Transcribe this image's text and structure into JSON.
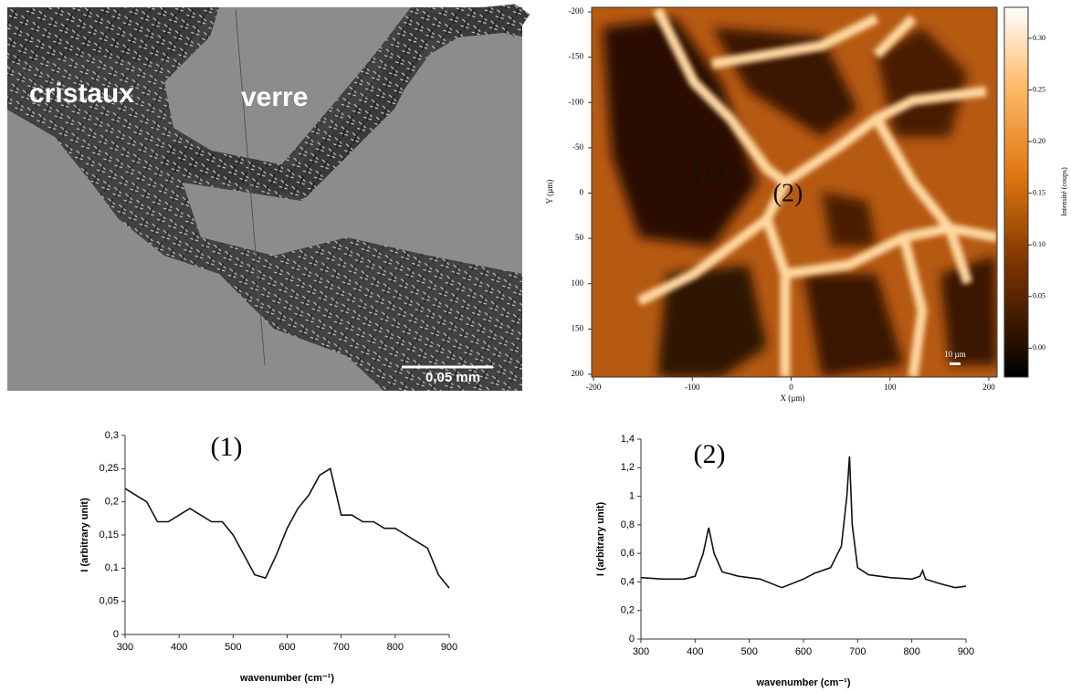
{
  "micrograph": {
    "labels": [
      "cristaux",
      "verre"
    ],
    "scale_bar": "0,05 mm"
  },
  "chart_data": [
    {
      "type": "heatmap",
      "annotations": [
        "(1)",
        "(2)"
      ],
      "scale_bar": "10 µm",
      "xlabel": "X (µm)",
      "ylabel": "Y (µm)",
      "colorbar_label": "Intensité (coups)",
      "xlim": [
        -200,
        200
      ],
      "xticks": [
        -200,
        -100,
        0,
        100,
        200
      ],
      "ylim": [
        200,
        -200
      ],
      "yticks": [
        -200,
        -150,
        -100,
        -50,
        0,
        50,
        100,
        150,
        200
      ],
      "clim": [
        -0.028,
        0.33
      ],
      "cticks": [
        {
          "value": 0,
          "label": "0.00"
        },
        {
          "value": 0.05,
          "label": "0.05"
        },
        {
          "value": 0.1,
          "label": "0.10"
        },
        {
          "value": 0.15,
          "label": "0.15"
        },
        {
          "value": 0.2,
          "label": "0.20"
        },
        {
          "value": 0.25,
          "label": "0.25"
        },
        {
          "value": 0.3,
          "label": "0.30"
        }
      ]
    },
    {
      "type": "line",
      "annotation": "(1)",
      "xlabel": "wavenumber (cm⁻¹)",
      "ylabel": "I (arbitrary unit)",
      "color": "#111111",
      "x": [
        300,
        320,
        340,
        360,
        380,
        400,
        420,
        440,
        460,
        480,
        500,
        520,
        540,
        560,
        580,
        600,
        620,
        640,
        660,
        680,
        700,
        720,
        740,
        760,
        780,
        800,
        820,
        840,
        860,
        880,
        900
      ],
      "values": [
        0.22,
        0.21,
        0.2,
        0.17,
        0.17,
        0.18,
        0.19,
        0.18,
        0.17,
        0.17,
        0.15,
        0.12,
        0.09,
        0.085,
        0.12,
        0.16,
        0.19,
        0.21,
        0.24,
        0.25,
        0.18,
        0.18,
        0.17,
        0.17,
        0.16,
        0.16,
        0.15,
        0.14,
        0.13,
        0.09,
        0.07
      ],
      "xlim": [
        300,
        900
      ],
      "xticks": [
        300,
        400,
        500,
        600,
        700,
        800,
        900
      ],
      "ylim": [
        0,
        0.3
      ],
      "yticks": [
        0,
        {
          "value": 0.05,
          "label": "0,05"
        },
        {
          "value": 0.1,
          "label": "0,1"
        },
        {
          "value": 0.15,
          "label": "0,15"
        },
        {
          "value": 0.2,
          "label": "0,2"
        },
        {
          "value": 0.25,
          "label": "0,25"
        },
        {
          "value": 0.3,
          "label": "0,3"
        }
      ]
    },
    {
      "type": "line",
      "annotation": "(2)",
      "xlabel": "wavenumber (cm⁻¹)",
      "ylabel": "I (arbitrary unit)",
      "color": "#111111",
      "x": [
        300,
        340,
        380,
        400,
        415,
        425,
        435,
        450,
        480,
        520,
        560,
        600,
        620,
        650,
        670,
        680,
        685,
        690,
        700,
        720,
        760,
        800,
        815,
        820,
        825,
        850,
        880,
        900
      ],
      "values": [
        0.43,
        0.42,
        0.42,
        0.44,
        0.6,
        0.78,
        0.6,
        0.47,
        0.44,
        0.42,
        0.36,
        0.42,
        0.46,
        0.5,
        0.65,
        1.0,
        1.28,
        0.8,
        0.5,
        0.45,
        0.43,
        0.42,
        0.44,
        0.48,
        0.42,
        0.39,
        0.36,
        0.37
      ],
      "xlim": [
        300,
        900
      ],
      "xticks": [
        300,
        400,
        500,
        600,
        700,
        800,
        900
      ],
      "ylim": [
        0,
        1.4
      ],
      "yticks": [
        0,
        {
          "value": 0.2,
          "label": "0,2"
        },
        {
          "value": 0.4,
          "label": "0,4"
        },
        {
          "value": 0.6,
          "label": "0,6"
        },
        {
          "value": 0.8,
          "label": "0,8"
        },
        1,
        {
          "value": 1.2,
          "label": "1,2"
        },
        {
          "value": 1.4,
          "label": "1,4"
        }
      ]
    }
  ]
}
